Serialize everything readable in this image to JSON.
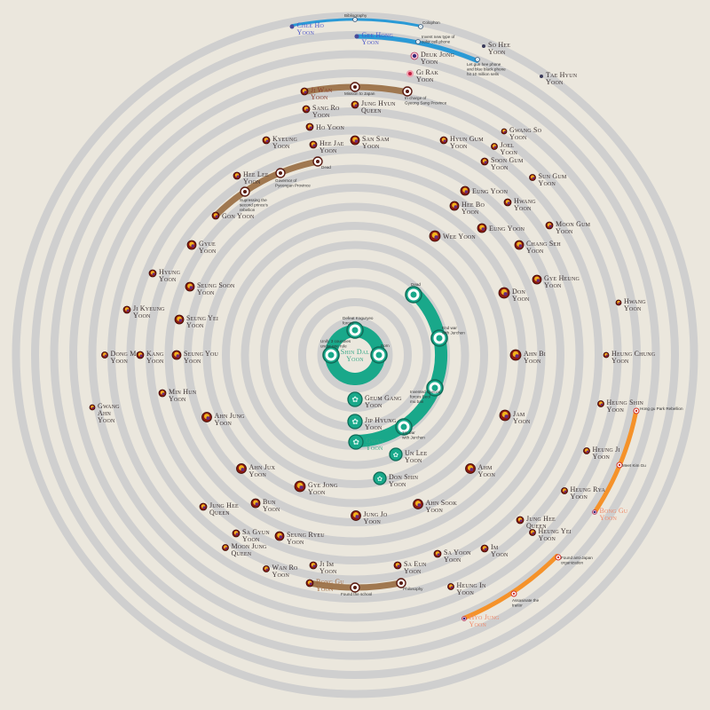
{
  "colors": {
    "background": "#ebe7dd",
    "ring": "#cfcfcf",
    "green": "#19a88a",
    "brown": "#a07850",
    "blue": "#2a9ad6",
    "orange": "#f5922a",
    "royal": "#8b1a10"
  },
  "center": {
    "lines": [
      "Shin Dal",
      "Yoon"
    ]
  },
  "people": [
    {
      "lines": [
        "Chee Ho",
        "Yoon"
      ]
    },
    {
      "lines": [
        "Gee Hong",
        "Yoon"
      ]
    },
    {
      "lines": [
        "Deuk Jong",
        "Yoon"
      ]
    },
    {
      "lines": [
        "So Hee",
        "Yoon"
      ]
    },
    {
      "lines": [
        "Tae Hyun",
        "Yoon"
      ]
    },
    {
      "lines": [
        "Gi Rak",
        "Yoon"
      ]
    },
    {
      "lines": [
        "Ji Wan",
        "Yoon"
      ]
    },
    {
      "lines": [
        "Sang Ro",
        "Yoon"
      ]
    },
    {
      "lines": [
        "Jung Hyun",
        "Queen"
      ]
    },
    {
      "lines": [
        "Ho Yoon"
      ]
    },
    {
      "lines": [
        "Kyeung",
        "Yoon"
      ]
    },
    {
      "lines": [
        "Hee Jae",
        "Yoon"
      ]
    },
    {
      "lines": [
        "San Sam",
        "Yoon"
      ]
    },
    {
      "lines": [
        "Hyun Gum",
        "Yoon"
      ]
    },
    {
      "lines": [
        "Gwang So",
        "Yoon"
      ]
    },
    {
      "lines": [
        "Joel",
        "Yoon"
      ]
    },
    {
      "lines": [
        "Soon Gum",
        "Yoon"
      ]
    },
    {
      "lines": [
        "Sun Gum",
        "Yoon"
      ]
    },
    {
      "lines": [
        "Hee Lee",
        "Yoon"
      ]
    },
    {
      "lines": [
        "Eung Yoon"
      ]
    },
    {
      "lines": [
        "Hwang",
        "Yoon"
      ]
    },
    {
      "lines": [
        "Hee Bo",
        "Yoon"
      ]
    },
    {
      "lines": [
        "Eung Yoon"
      ]
    },
    {
      "lines": [
        "Moon Gum",
        "Yoon"
      ]
    },
    {
      "lines": [
        "Wee Yoon"
      ]
    },
    {
      "lines": [
        "Chang Seh",
        "Yoon"
      ]
    },
    {
      "lines": [
        "Gon Yoon"
      ]
    },
    {
      "lines": [
        "Gyue",
        "Yoon"
      ]
    },
    {
      "lines": [
        "Gye Heung",
        "Yoon"
      ]
    },
    {
      "lines": [
        "Don",
        "Yoon"
      ]
    },
    {
      "lines": [
        "Hyung",
        "Yoon"
      ]
    },
    {
      "lines": [
        "Seung Soon",
        "Yoon"
      ]
    },
    {
      "lines": [
        "Hwang",
        "Yoon"
      ]
    },
    {
      "lines": [
        "Ji Kyeung",
        "Yoon"
      ]
    },
    {
      "lines": [
        "Seung Yei",
        "Yoon"
      ]
    },
    {
      "lines": [
        "Ahn Bi",
        "Yoon"
      ]
    },
    {
      "lines": [
        "Heung Chung",
        "Yoon"
      ]
    },
    {
      "lines": [
        "Dong Me",
        "Yoon"
      ]
    },
    {
      "lines": [
        "Kang",
        "Yoon"
      ]
    },
    {
      "lines": [
        "Seung You",
        "Yoon"
      ]
    },
    {
      "lines": [
        "Min Hun",
        "Yoon"
      ]
    },
    {
      "lines": [
        "Gwang",
        "Ahn",
        "Yoon"
      ]
    },
    {
      "lines": [
        "Ahn Jung",
        "Yoon"
      ]
    },
    {
      "lines": [
        "Heung Shin",
        "Yoon"
      ]
    },
    {
      "lines": [
        "Jam",
        "Yoon"
      ]
    },
    {
      "lines": [
        "Heung Ji",
        "Yoon"
      ]
    },
    {
      "lines": [
        "Ahn Jux",
        "Yoon"
      ]
    },
    {
      "lines": [
        "Ahm",
        "Yoon"
      ]
    },
    {
      "lines": [
        "Gye Jong",
        "Yoon"
      ]
    },
    {
      "lines": [
        "Heung Rya",
        "Yoon"
      ]
    },
    {
      "lines": [
        "Jung Hee",
        "Queen"
      ]
    },
    {
      "lines": [
        "Bun",
        "Yoon"
      ]
    },
    {
      "lines": [
        "Ahn Sook",
        "Yoon"
      ]
    },
    {
      "lines": [
        "Jung Jo",
        "Yoon"
      ]
    },
    {
      "lines": [
        "Jung Hee",
        "Queen"
      ]
    },
    {
      "lines": [
        "Heung Yei",
        "Yoon"
      ]
    },
    {
      "lines": [
        "Sa Gyun",
        "Yoon"
      ]
    },
    {
      "lines": [
        "Seung Ryeu",
        "Yoon"
      ]
    },
    {
      "lines": [
        "Moon Jung",
        "Queen"
      ]
    },
    {
      "lines": [
        "Im",
        "Yoon"
      ]
    },
    {
      "lines": [
        "Sa Yoon",
        "Yoon"
      ]
    },
    {
      "lines": [
        "Wan Ro",
        "Yoon"
      ]
    },
    {
      "lines": [
        "Ji Im",
        "Yoon"
      ]
    },
    {
      "lines": [
        "Sa Eun",
        "Yoon"
      ]
    },
    {
      "lines": [
        "Heung In",
        "Yoon"
      ]
    },
    {
      "lines": [
        "Geum Gang",
        "Yoon"
      ]
    },
    {
      "lines": [
        "Jip Hyung",
        "Yoon"
      ]
    },
    {
      "lines": [
        "Gwan",
        "Yoon"
      ]
    },
    {
      "lines": [
        "Un Lee",
        "Yoon"
      ]
    },
    {
      "lines": [
        "Don Shin",
        "Yoon"
      ]
    },
    {
      "lines": [
        "Bong Gu",
        "Yoon"
      ]
    },
    {
      "lines": [
        "Bong Gu",
        "Yoon"
      ]
    },
    {
      "lines": [
        "Hyo Jung",
        "Yoon"
      ]
    }
  ],
  "timelines": [
    {
      "owner": "Shin Dal Yoon",
      "color": "green",
      "events": [
        "Defeat Koguryeo forces",
        "Unify 3 countries under one rule",
        "Born"
      ]
    },
    {
      "owner": "Gwan Yoon",
      "color": "green",
      "events": [
        "Dead",
        "End war with Jurchen",
        "Invented Special forces Beol mu ban",
        "1st war with Jurchen"
      ]
    },
    {
      "owner": "Ji Wan Yoon",
      "color": "brown",
      "events": [
        "Mission to Japan",
        "In charge of Gyeong Sang Province"
      ]
    },
    {
      "owner": "Gon Yoon",
      "color": "brown",
      "events": [
        "Supressing the second prince's rebellion",
        "Governor of Pyeongan Province",
        "Dead"
      ]
    },
    {
      "owner": "Bong Gu Yoon",
      "color": "brown",
      "events": [
        "Found the school",
        "Philosophy"
      ]
    },
    {
      "owner": "Chee Ho Yoon",
      "color": "blue",
      "events": [
        "Bibliography",
        "Colophon"
      ]
    },
    {
      "owner": "Gee Hong Yoon",
      "color": "blue",
      "events": [
        "Invent new type of color cell phone",
        "Let gun hee phone and blue black phone hit 10 million sells"
      ]
    },
    {
      "owner": "Bong Gu Yoon",
      "color": "orange",
      "events": [
        "Hong gu Park Rebellion",
        "Meet Kim Gu"
      ]
    },
    {
      "owner": "Hyo Jung Yoon",
      "color": "orange",
      "events": [
        "Assasinate the traitor",
        "Found anti-Japan organization"
      ]
    }
  ]
}
